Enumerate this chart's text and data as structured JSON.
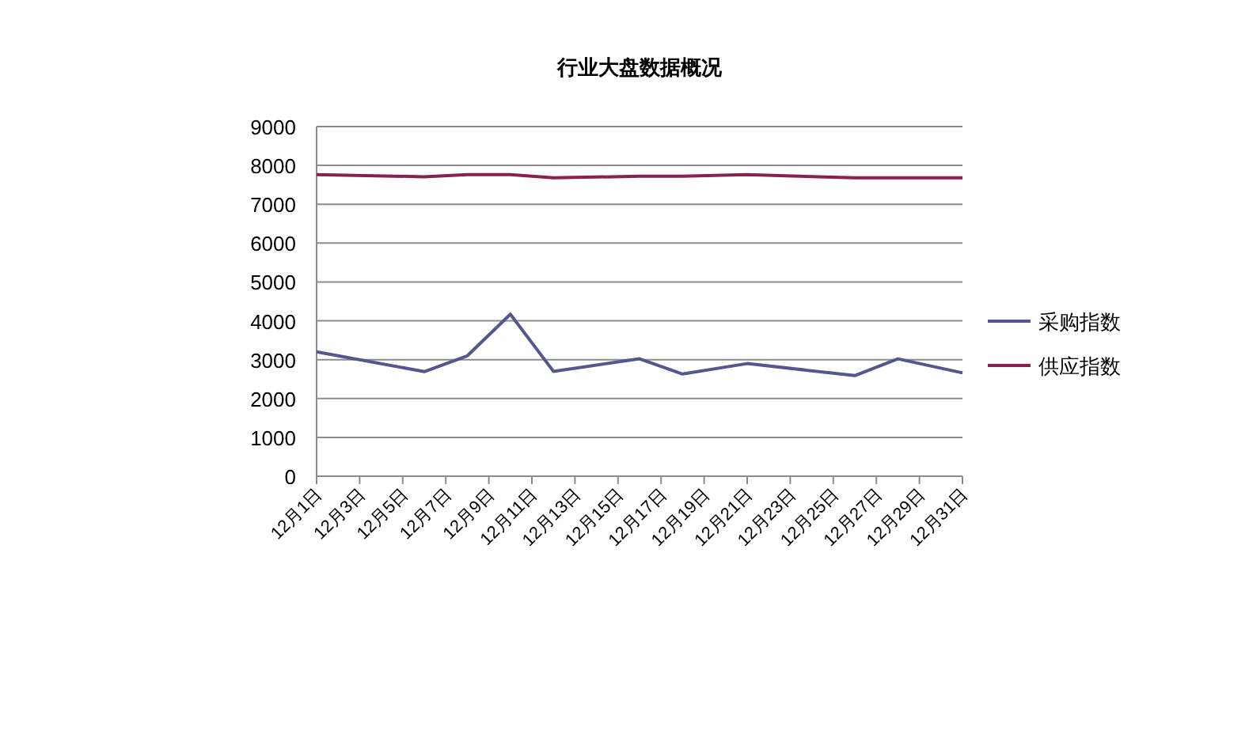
{
  "chart_data": {
    "type": "line",
    "title": "行业大盘数据概况",
    "x": [
      "--12-01",
      "--12-06",
      "--12-08",
      "--12-10",
      "--12-12",
      "--12-16",
      "--12-18",
      "--12-21",
      "--12-26",
      "--12-28",
      "--12-31"
    ],
    "xlim": [
      "--12-01",
      "--12-31"
    ],
    "xticks": [
      {
        "value": "--12-01",
        "label": "12月1日"
      },
      {
        "value": "--12-03",
        "label": "12月3日"
      },
      {
        "value": "--12-05",
        "label": "12月5日"
      },
      {
        "value": "--12-07",
        "label": "12月7日"
      },
      {
        "value": "--12-09",
        "label": "12月9日"
      },
      {
        "value": "--12-11",
        "label": "12月11日"
      },
      {
        "value": "--12-13",
        "label": "12月13日"
      },
      {
        "value": "--12-15",
        "label": "12月15日"
      },
      {
        "value": "--12-17",
        "label": "12月17日"
      },
      {
        "value": "--12-19",
        "label": "12月19日"
      },
      {
        "value": "--12-21",
        "label": "12月21日"
      },
      {
        "value": "--12-23",
        "label": "12月23日"
      },
      {
        "value": "--12-25",
        "label": "12月25日"
      },
      {
        "value": "--12-27",
        "label": "12月27日"
      },
      {
        "value": "--12-29",
        "label": "12月29日"
      },
      {
        "value": "--12-31",
        "label": "12月31日"
      }
    ],
    "ylim": [
      0,
      9000
    ],
    "yticks": [
      0,
      1000,
      2000,
      3000,
      4000,
      5000,
      6000,
      7000,
      8000,
      9000
    ],
    "grid": "y",
    "legend": "right",
    "marker": "none",
    "line_style": "solid",
    "series": [
      {
        "name": "采购指数",
        "color": "#55558f",
        "values": [
          3200,
          2690,
          3100,
          4170,
          2700,
          3020,
          2630,
          2900,
          2590,
          3020,
          2660
        ]
      },
      {
        "name": "供应指数",
        "color": "#8b1f4f",
        "values": [
          7760,
          7710,
          7760,
          7760,
          7680,
          7720,
          7720,
          7760,
          7680,
          7680,
          7680
        ]
      }
    ]
  }
}
